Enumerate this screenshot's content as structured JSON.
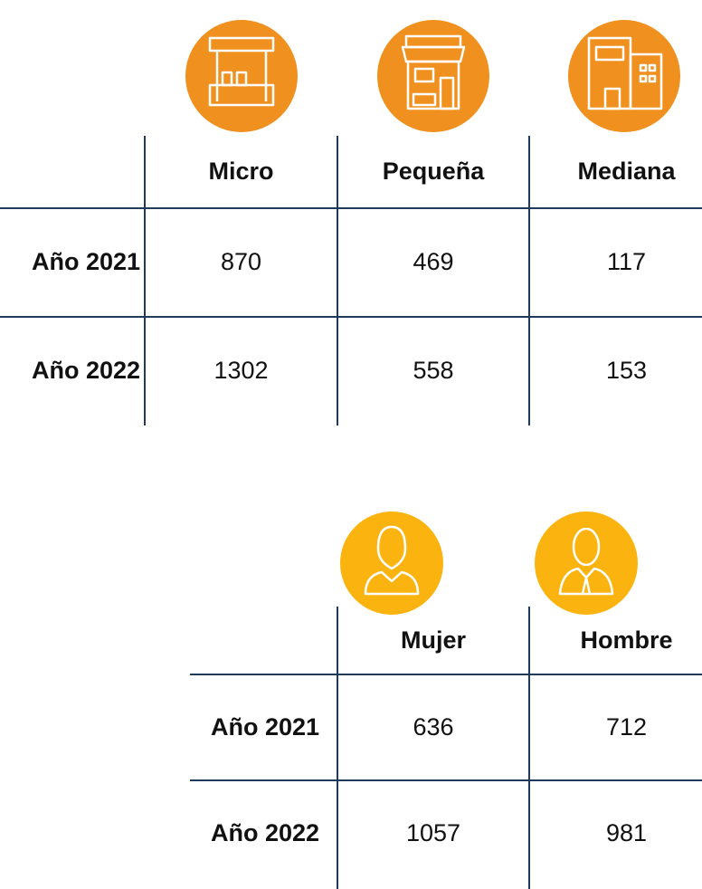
{
  "tables": [
    {
      "columns": [
        "Micro",
        "Pequeña",
        "Mediana"
      ],
      "rows": [
        {
          "label": "Año 2021",
          "values": [
            870,
            469,
            117
          ]
        },
        {
          "label": "Año 2022",
          "values": [
            1302,
            558,
            153
          ]
        }
      ]
    },
    {
      "columns": [
        "Mujer",
        "Hombre"
      ],
      "rows": [
        {
          "label": "Año 2021",
          "values": [
            636,
            712
          ]
        },
        {
          "label": "Año 2022",
          "values": [
            1057,
            981
          ]
        }
      ]
    }
  ]
}
